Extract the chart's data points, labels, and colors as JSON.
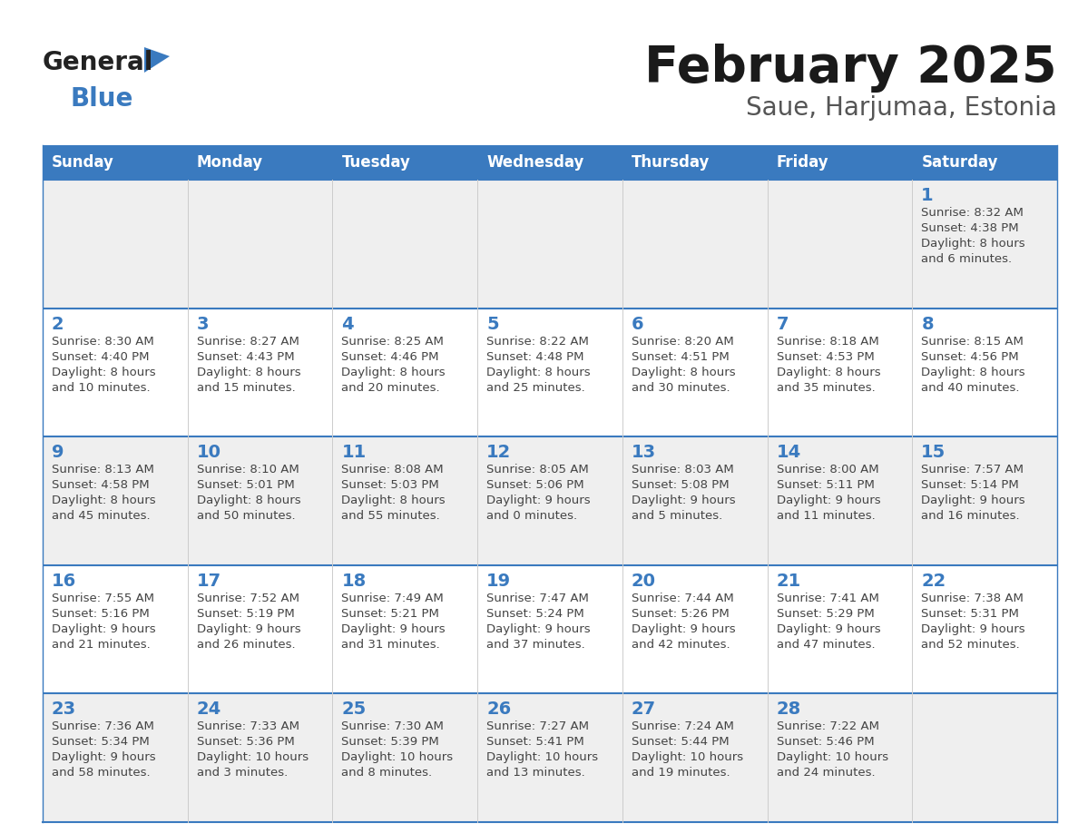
{
  "title": "February 2025",
  "subtitle": "Saue, Harjumaa, Estonia",
  "days_of_week": [
    "Sunday",
    "Monday",
    "Tuesday",
    "Wednesday",
    "Thursday",
    "Friday",
    "Saturday"
  ],
  "header_bg": "#3a7abf",
  "header_text": "#ffffff",
  "cell_bg_odd": "#efefef",
  "cell_bg_even": "#ffffff",
  "grid_line_color": "#3a7abf",
  "day_number_color": "#3a7abf",
  "text_color": "#444444",
  "title_color": "#1a1a1a",
  "subtitle_color": "#555555",
  "logo_general_color": "#222222",
  "logo_blue_color": "#3a7abf",
  "weeks": [
    [
      {
        "date": null,
        "info": null
      },
      {
        "date": null,
        "info": null
      },
      {
        "date": null,
        "info": null
      },
      {
        "date": null,
        "info": null
      },
      {
        "date": null,
        "info": null
      },
      {
        "date": null,
        "info": null
      },
      {
        "date": 1,
        "info": "Sunrise: 8:32 AM\nSunset: 4:38 PM\nDaylight: 8 hours\nand 6 minutes."
      }
    ],
    [
      {
        "date": 2,
        "info": "Sunrise: 8:30 AM\nSunset: 4:40 PM\nDaylight: 8 hours\nand 10 minutes."
      },
      {
        "date": 3,
        "info": "Sunrise: 8:27 AM\nSunset: 4:43 PM\nDaylight: 8 hours\nand 15 minutes."
      },
      {
        "date": 4,
        "info": "Sunrise: 8:25 AM\nSunset: 4:46 PM\nDaylight: 8 hours\nand 20 minutes."
      },
      {
        "date": 5,
        "info": "Sunrise: 8:22 AM\nSunset: 4:48 PM\nDaylight: 8 hours\nand 25 minutes."
      },
      {
        "date": 6,
        "info": "Sunrise: 8:20 AM\nSunset: 4:51 PM\nDaylight: 8 hours\nand 30 minutes."
      },
      {
        "date": 7,
        "info": "Sunrise: 8:18 AM\nSunset: 4:53 PM\nDaylight: 8 hours\nand 35 minutes."
      },
      {
        "date": 8,
        "info": "Sunrise: 8:15 AM\nSunset: 4:56 PM\nDaylight: 8 hours\nand 40 minutes."
      }
    ],
    [
      {
        "date": 9,
        "info": "Sunrise: 8:13 AM\nSunset: 4:58 PM\nDaylight: 8 hours\nand 45 minutes."
      },
      {
        "date": 10,
        "info": "Sunrise: 8:10 AM\nSunset: 5:01 PM\nDaylight: 8 hours\nand 50 minutes."
      },
      {
        "date": 11,
        "info": "Sunrise: 8:08 AM\nSunset: 5:03 PM\nDaylight: 8 hours\nand 55 minutes."
      },
      {
        "date": 12,
        "info": "Sunrise: 8:05 AM\nSunset: 5:06 PM\nDaylight: 9 hours\nand 0 minutes."
      },
      {
        "date": 13,
        "info": "Sunrise: 8:03 AM\nSunset: 5:08 PM\nDaylight: 9 hours\nand 5 minutes."
      },
      {
        "date": 14,
        "info": "Sunrise: 8:00 AM\nSunset: 5:11 PM\nDaylight: 9 hours\nand 11 minutes."
      },
      {
        "date": 15,
        "info": "Sunrise: 7:57 AM\nSunset: 5:14 PM\nDaylight: 9 hours\nand 16 minutes."
      }
    ],
    [
      {
        "date": 16,
        "info": "Sunrise: 7:55 AM\nSunset: 5:16 PM\nDaylight: 9 hours\nand 21 minutes."
      },
      {
        "date": 17,
        "info": "Sunrise: 7:52 AM\nSunset: 5:19 PM\nDaylight: 9 hours\nand 26 minutes."
      },
      {
        "date": 18,
        "info": "Sunrise: 7:49 AM\nSunset: 5:21 PM\nDaylight: 9 hours\nand 31 minutes."
      },
      {
        "date": 19,
        "info": "Sunrise: 7:47 AM\nSunset: 5:24 PM\nDaylight: 9 hours\nand 37 minutes."
      },
      {
        "date": 20,
        "info": "Sunrise: 7:44 AM\nSunset: 5:26 PM\nDaylight: 9 hours\nand 42 minutes."
      },
      {
        "date": 21,
        "info": "Sunrise: 7:41 AM\nSunset: 5:29 PM\nDaylight: 9 hours\nand 47 minutes."
      },
      {
        "date": 22,
        "info": "Sunrise: 7:38 AM\nSunset: 5:31 PM\nDaylight: 9 hours\nand 52 minutes."
      }
    ],
    [
      {
        "date": 23,
        "info": "Sunrise: 7:36 AM\nSunset: 5:34 PM\nDaylight: 9 hours\nand 58 minutes."
      },
      {
        "date": 24,
        "info": "Sunrise: 7:33 AM\nSunset: 5:36 PM\nDaylight: 10 hours\nand 3 minutes."
      },
      {
        "date": 25,
        "info": "Sunrise: 7:30 AM\nSunset: 5:39 PM\nDaylight: 10 hours\nand 8 minutes."
      },
      {
        "date": 26,
        "info": "Sunrise: 7:27 AM\nSunset: 5:41 PM\nDaylight: 10 hours\nand 13 minutes."
      },
      {
        "date": 27,
        "info": "Sunrise: 7:24 AM\nSunset: 5:44 PM\nDaylight: 10 hours\nand 19 minutes."
      },
      {
        "date": 28,
        "info": "Sunrise: 7:22 AM\nSunset: 5:46 PM\nDaylight: 10 hours\nand 24 minutes."
      },
      {
        "date": null,
        "info": null
      }
    ]
  ]
}
